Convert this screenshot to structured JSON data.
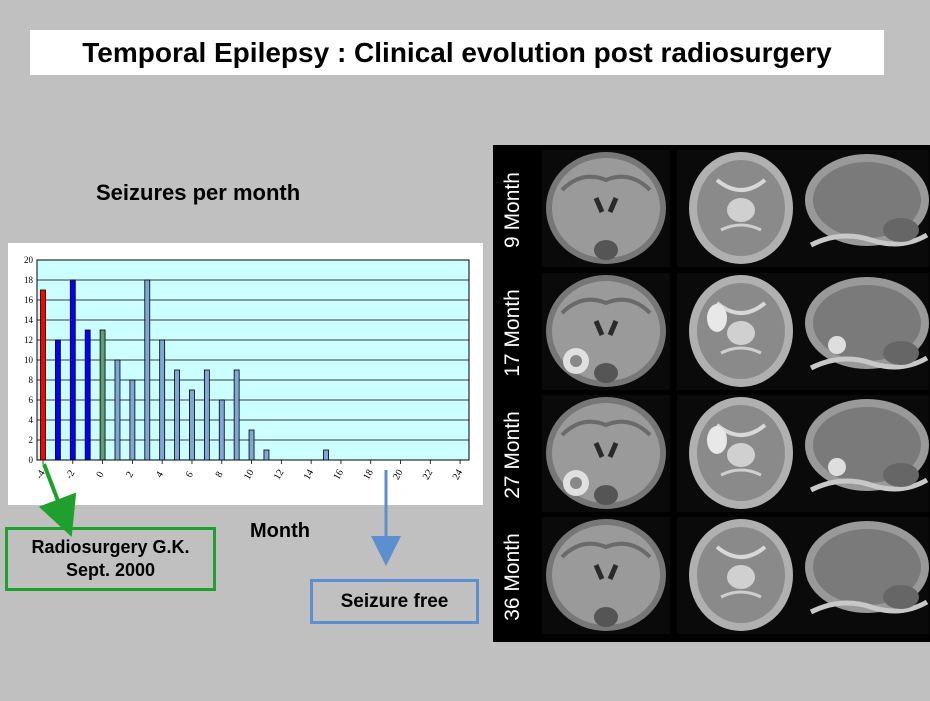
{
  "slide": {
    "title": "Temporal Epilepsy : Clinical evolution post radiosurgery",
    "chart_title": "Seizures per month",
    "x_label": "Month",
    "callout_green_line1": "Radiosurgery G.K.",
    "callout_green_line2": "Sept. 2000",
    "callout_blue": "Seizure free"
  },
  "colors": {
    "background": "#c0c0c0",
    "plot_bg": "#ccffff",
    "pre_bar_red": "#ff0000",
    "pre_bar_blue": "#0000ff",
    "treatment_bar_green": "#5f9e78",
    "post_bar_blue": "#7fa8d8",
    "callout_green": "#1fa02e",
    "callout_blue": "#5b8fd0"
  },
  "mri": {
    "rows": [
      "9 Month",
      "17 Month",
      "27 Month",
      "36 Month"
    ],
    "views": [
      "coronal",
      "axial",
      "sagittal"
    ]
  },
  "chart_data": {
    "type": "bar",
    "title": "Seizures per month",
    "xlabel": "Month",
    "ylabel": "",
    "ylim": [
      0,
      20
    ],
    "yticks": [
      0,
      2,
      4,
      6,
      8,
      10,
      12,
      14,
      16,
      18,
      20
    ],
    "xlim": [
      -4,
      25
    ],
    "xticks": [
      -4,
      -2,
      0,
      2,
      4,
      6,
      8,
      10,
      12,
      14,
      16,
      18,
      20,
      22,
      24
    ],
    "xtick_labels": [
      "-4",
      "-2",
      "0",
      "2",
      "4",
      "6",
      "8",
      "10",
      "12",
      "14",
      "16",
      "18",
      "20",
      "22",
      "24"
    ],
    "grid": true,
    "x": [
      -4,
      -3,
      -2,
      -1,
      0,
      1,
      2,
      3,
      4,
      5,
      6,
      7,
      8,
      9,
      10,
      11,
      12,
      13,
      14,
      15,
      16,
      17,
      18,
      19,
      20,
      21,
      22,
      23,
      24
    ],
    "values": [
      17,
      12,
      18,
      13,
      13,
      10,
      8,
      18,
      12,
      9,
      7,
      9,
      6,
      9,
      3,
      1,
      0,
      0,
      0,
      1,
      0,
      0,
      0,
      0,
      0,
      0,
      0,
      0,
      0
    ],
    "bar_colors": [
      "#ff0000",
      "#0000ff",
      "#0000ff",
      "#0000ff",
      "#5f9e78"
    ],
    "default_bar_color": "#7fa8d8"
  }
}
